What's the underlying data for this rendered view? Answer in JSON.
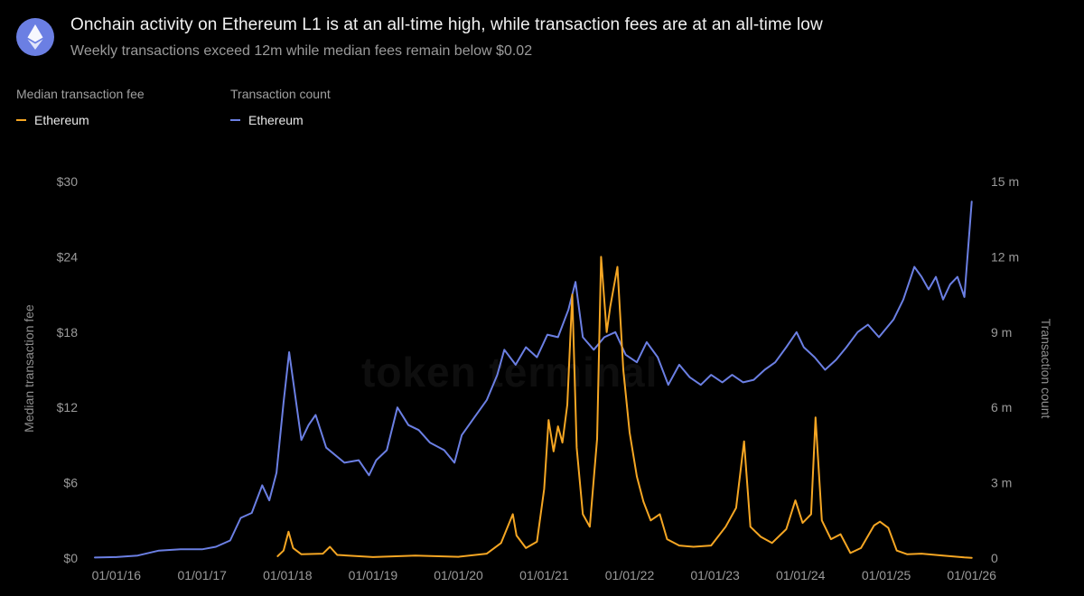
{
  "header": {
    "logo_icon": "ethereum-logo-icon",
    "title": "Onchain activity on Ethereum L1 is at an all-time high, while transaction fees are at an all-time low",
    "subtitle": "Weekly transactions exceed 12m while median fees remain below $0.02"
  },
  "legend": {
    "fee": {
      "heading": "Median transaction fee",
      "label": "Ethereum",
      "color": "#f5a623"
    },
    "count": {
      "heading": "Transaction count",
      "label": "Ethereum",
      "color": "#6b7fe3"
    }
  },
  "watermark": "token terminal",
  "chart_data": {
    "type": "line",
    "grid": false,
    "legend_placement": "top-left",
    "xlabel": "",
    "x_ticks": [
      "01/01/16",
      "01/01/17",
      "01/01/18",
      "01/01/19",
      "01/01/20",
      "01/01/21",
      "01/01/22",
      "01/01/23",
      "01/01/24",
      "01/01/25",
      "01/01/26"
    ],
    "y_left": {
      "label": "Median transaction fee",
      "ticks": [
        "$0",
        "$6",
        "$12",
        "$18",
        "$24",
        "$30"
      ],
      "range": [
        0,
        30
      ]
    },
    "y_right": {
      "label": "Transaction count",
      "ticks": [
        "0",
        "3 m",
        "6 m",
        "9 m",
        "12 m",
        "15 m"
      ],
      "range": [
        0,
        15
      ]
    },
    "series": [
      {
        "name": "Transaction count",
        "axis": "right",
        "unit": "millions",
        "color": "#6b7fe3",
        "points": [
          [
            "2015-10-01",
            0.02
          ],
          [
            "2016-01-01",
            0.04
          ],
          [
            "2016-04-01",
            0.1
          ],
          [
            "2016-07-01",
            0.3
          ],
          [
            "2016-10-01",
            0.35
          ],
          [
            "2017-01-01",
            0.35
          ],
          [
            "2017-03-01",
            0.45
          ],
          [
            "2017-05-01",
            0.7
          ],
          [
            "2017-06-15",
            1.6
          ],
          [
            "2017-08-01",
            1.8
          ],
          [
            "2017-09-15",
            2.9
          ],
          [
            "2017-10-15",
            2.3
          ],
          [
            "2017-11-15",
            3.4
          ],
          [
            "2017-12-15",
            6.2
          ],
          [
            "2018-01-08",
            8.2
          ],
          [
            "2018-02-01",
            6.6
          ],
          [
            "2018-03-01",
            4.7
          ],
          [
            "2018-04-01",
            5.3
          ],
          [
            "2018-05-01",
            5.7
          ],
          [
            "2018-06-15",
            4.4
          ],
          [
            "2018-09-01",
            3.8
          ],
          [
            "2018-11-01",
            3.9
          ],
          [
            "2018-12-15",
            3.3
          ],
          [
            "2019-01-15",
            3.9
          ],
          [
            "2019-03-01",
            4.3
          ],
          [
            "2019-04-15",
            6.0
          ],
          [
            "2019-06-01",
            5.3
          ],
          [
            "2019-07-15",
            5.1
          ],
          [
            "2019-09-01",
            4.6
          ],
          [
            "2019-11-01",
            4.3
          ],
          [
            "2019-12-15",
            3.8
          ],
          [
            "2020-01-15",
            4.9
          ],
          [
            "2020-03-01",
            5.5
          ],
          [
            "2020-05-01",
            6.3
          ],
          [
            "2020-06-15",
            7.3
          ],
          [
            "2020-07-15",
            8.3
          ],
          [
            "2020-09-01",
            7.7
          ],
          [
            "2020-10-15",
            8.4
          ],
          [
            "2020-12-01",
            8.0
          ],
          [
            "2021-01-15",
            8.9
          ],
          [
            "2021-03-01",
            8.8
          ],
          [
            "2021-04-15",
            9.9
          ],
          [
            "2021-05-15",
            11.0
          ],
          [
            "2021-06-15",
            8.8
          ],
          [
            "2021-08-01",
            8.3
          ],
          [
            "2021-09-15",
            8.8
          ],
          [
            "2021-11-01",
            9.0
          ],
          [
            "2021-12-15",
            8.1
          ],
          [
            "2022-02-01",
            7.8
          ],
          [
            "2022-03-15",
            8.6
          ],
          [
            "2022-05-01",
            8.0
          ],
          [
            "2022-06-15",
            6.9
          ],
          [
            "2022-08-01",
            7.7
          ],
          [
            "2022-09-15",
            7.2
          ],
          [
            "2022-11-01",
            6.9
          ],
          [
            "2022-12-15",
            7.3
          ],
          [
            "2023-02-01",
            7.0
          ],
          [
            "2023-03-15",
            7.3
          ],
          [
            "2023-05-01",
            7.0
          ],
          [
            "2023-06-15",
            7.1
          ],
          [
            "2023-08-01",
            7.5
          ],
          [
            "2023-09-15",
            7.8
          ],
          [
            "2023-11-01",
            8.4
          ],
          [
            "2023-12-15",
            9.0
          ],
          [
            "2024-01-15",
            8.4
          ],
          [
            "2024-03-01",
            8.0
          ],
          [
            "2024-04-15",
            7.5
          ],
          [
            "2024-06-01",
            7.9
          ],
          [
            "2024-07-15",
            8.4
          ],
          [
            "2024-09-01",
            9.0
          ],
          [
            "2024-10-15",
            9.3
          ],
          [
            "2024-12-01",
            8.8
          ],
          [
            "2025-02-01",
            9.5
          ],
          [
            "2025-03-15",
            10.3
          ],
          [
            "2025-05-01",
            11.6
          ],
          [
            "2025-06-01",
            11.2
          ],
          [
            "2025-07-01",
            10.7
          ],
          [
            "2025-08-01",
            11.2
          ],
          [
            "2025-09-01",
            10.3
          ],
          [
            "2025-10-01",
            10.9
          ],
          [
            "2025-11-01",
            11.2
          ],
          [
            "2025-12-01",
            10.4
          ],
          [
            "2026-01-01",
            14.2
          ]
        ]
      },
      {
        "name": "Median transaction fee",
        "axis": "left",
        "unit": "USD",
        "color": "#f5a623",
        "points": [
          [
            "2017-11-20",
            0.15
          ],
          [
            "2017-12-15",
            0.6
          ],
          [
            "2018-01-05",
            2.1
          ],
          [
            "2018-01-25",
            0.8
          ],
          [
            "2018-03-01",
            0.3
          ],
          [
            "2018-06-01",
            0.35
          ],
          [
            "2018-07-01",
            0.9
          ],
          [
            "2018-08-01",
            0.25
          ],
          [
            "2019-01-01",
            0.08
          ],
          [
            "2019-07-01",
            0.2
          ],
          [
            "2020-01-01",
            0.1
          ],
          [
            "2020-05-01",
            0.35
          ],
          [
            "2020-07-01",
            1.2
          ],
          [
            "2020-08-20",
            3.5
          ],
          [
            "2020-09-05",
            1.8
          ],
          [
            "2020-10-15",
            0.8
          ],
          [
            "2020-12-01",
            1.3
          ],
          [
            "2021-01-01",
            5.5
          ],
          [
            "2021-01-20",
            11.0
          ],
          [
            "2021-02-10",
            8.5
          ],
          [
            "2021-03-01",
            10.5
          ],
          [
            "2021-03-20",
            9.2
          ],
          [
            "2021-04-10",
            12.2
          ],
          [
            "2021-05-01",
            21.0
          ],
          [
            "2021-05-20",
            8.8
          ],
          [
            "2021-06-15",
            3.5
          ],
          [
            "2021-07-15",
            2.5
          ],
          [
            "2021-08-15",
            9.5
          ],
          [
            "2021-09-01",
            24.0
          ],
          [
            "2021-09-25",
            18.0
          ],
          [
            "2021-10-10",
            20.0
          ],
          [
            "2021-11-10",
            23.2
          ],
          [
            "2021-12-05",
            15.0
          ],
          [
            "2022-01-01",
            10.0
          ],
          [
            "2022-02-01",
            6.5
          ],
          [
            "2022-03-01",
            4.5
          ],
          [
            "2022-04-01",
            3.0
          ],
          [
            "2022-05-10",
            3.5
          ],
          [
            "2022-06-10",
            1.5
          ],
          [
            "2022-08-01",
            1.0
          ],
          [
            "2022-10-01",
            0.9
          ],
          [
            "2022-12-15",
            1.0
          ],
          [
            "2023-02-15",
            2.5
          ],
          [
            "2023-04-01",
            4.0
          ],
          [
            "2023-05-05",
            9.3
          ],
          [
            "2023-06-01",
            2.5
          ],
          [
            "2023-07-15",
            1.7
          ],
          [
            "2023-09-01",
            1.2
          ],
          [
            "2023-11-01",
            2.3
          ],
          [
            "2023-12-10",
            4.6
          ],
          [
            "2024-01-10",
            2.8
          ],
          [
            "2024-02-15",
            3.5
          ],
          [
            "2024-03-05",
            11.2
          ],
          [
            "2024-04-01",
            3.0
          ],
          [
            "2024-05-10",
            1.5
          ],
          [
            "2024-06-20",
            1.9
          ],
          [
            "2024-08-01",
            0.4
          ],
          [
            "2024-09-15",
            0.8
          ],
          [
            "2024-11-10",
            2.6
          ],
          [
            "2024-12-05",
            2.9
          ],
          [
            "2025-01-10",
            2.4
          ],
          [
            "2025-02-15",
            0.6
          ],
          [
            "2025-04-01",
            0.3
          ],
          [
            "2025-06-01",
            0.35
          ],
          [
            "2025-09-01",
            0.2
          ],
          [
            "2025-12-01",
            0.05
          ],
          [
            "2026-01-01",
            0.02
          ]
        ]
      }
    ]
  }
}
